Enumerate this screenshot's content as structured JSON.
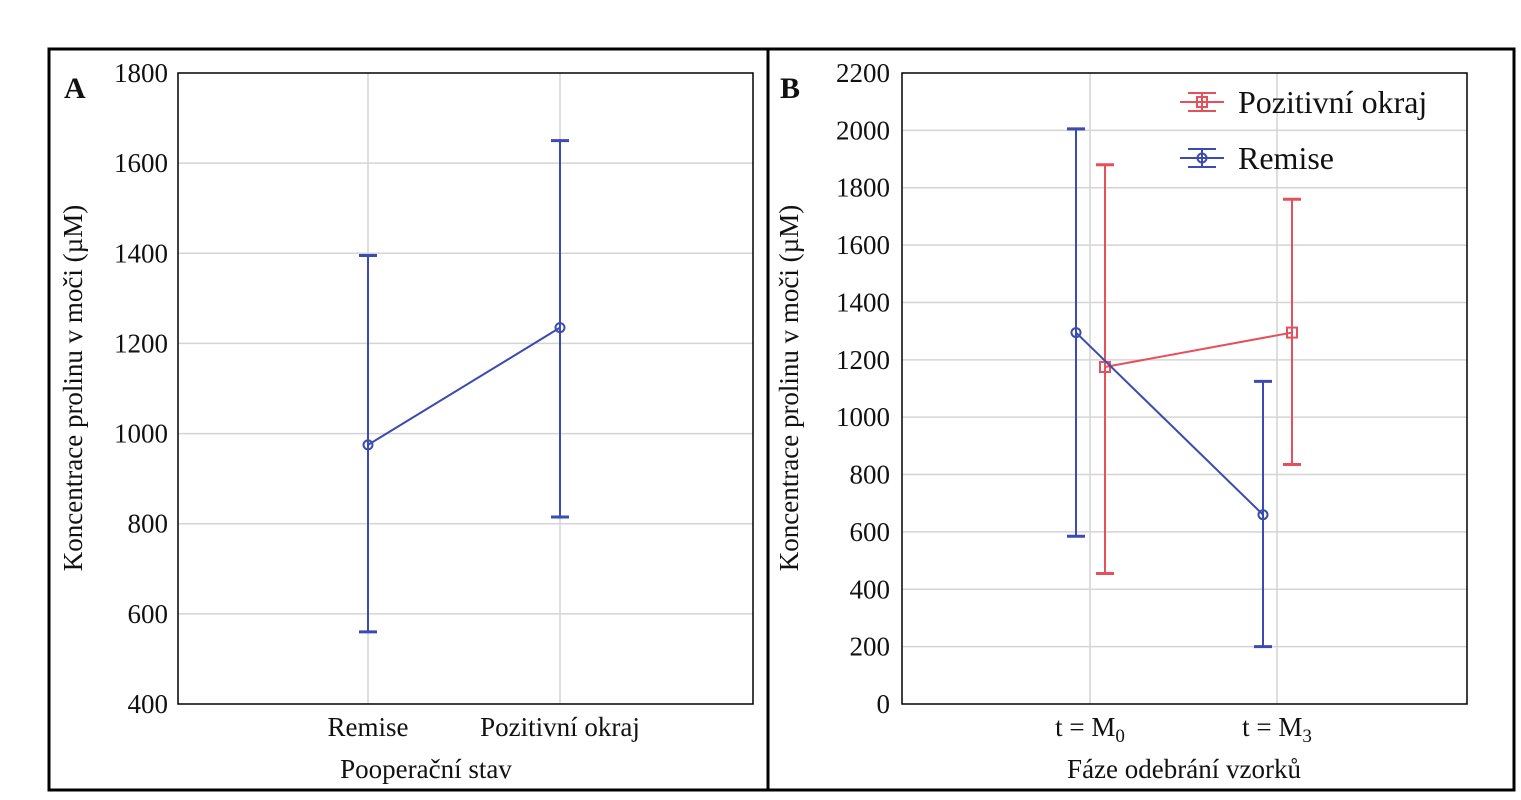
{
  "colors": {
    "remise": "#3b4bb0",
    "pozitivni": "#e5505a",
    "grid": "#d4d4d4",
    "frame": "#000000"
  },
  "chart_data": [
    {
      "panel_label": "A",
      "type": "line",
      "xlabel": "Pooperační stav",
      "ylabel": "Koncentrace prolinu v moči (µM)",
      "ylim": [
        400,
        1800
      ],
      "yticks": [
        400,
        600,
        800,
        1000,
        1200,
        1400,
        1600,
        1800
      ],
      "ytick_labels": [
        "400",
        "600",
        "800",
        "1000",
        "1200",
        "1400",
        "1600",
        "1800"
      ],
      "categories": [
        "Remise",
        "Pozitivní okraj"
      ],
      "grid": true,
      "series": [
        {
          "color_key": "remise",
          "marker": "circle",
          "values": [
            975,
            1235
          ],
          "err_low": [
            560,
            815
          ],
          "err_high": [
            1395,
            1650
          ]
        }
      ]
    },
    {
      "panel_label": "B",
      "type": "line",
      "xlabel": "Fáze odebrání vzorků",
      "ylabel": "Koncentrace prolinu v moči (µM)",
      "ylim": [
        0,
        2200
      ],
      "yticks": [
        0,
        200,
        400,
        600,
        800,
        1000,
        1200,
        1400,
        1600,
        1800,
        2000,
        2200
      ],
      "ytick_labels": [
        "0",
        "200",
        "400",
        "600",
        "800",
        "1000",
        "1200",
        "1400",
        "1600",
        "1800",
        "2000",
        "2200"
      ],
      "categories": [
        {
          "base": "t = M",
          "sub": "0"
        },
        {
          "base": "t = M",
          "sub": "3"
        }
      ],
      "grid": true,
      "legend": "top-right",
      "series": [
        {
          "name": "Pozitivní okraj",
          "color_key": "pozitivni",
          "marker": "square",
          "values": [
            1175,
            1295
          ],
          "err_low": [
            455,
            835
          ],
          "err_high": [
            1880,
            1760
          ]
        },
        {
          "name": "Remise",
          "color_key": "remise",
          "marker": "circle",
          "values": [
            1295,
            660
          ],
          "err_low": [
            585,
            200
          ],
          "err_high": [
            2005,
            1125
          ]
        }
      ]
    }
  ]
}
